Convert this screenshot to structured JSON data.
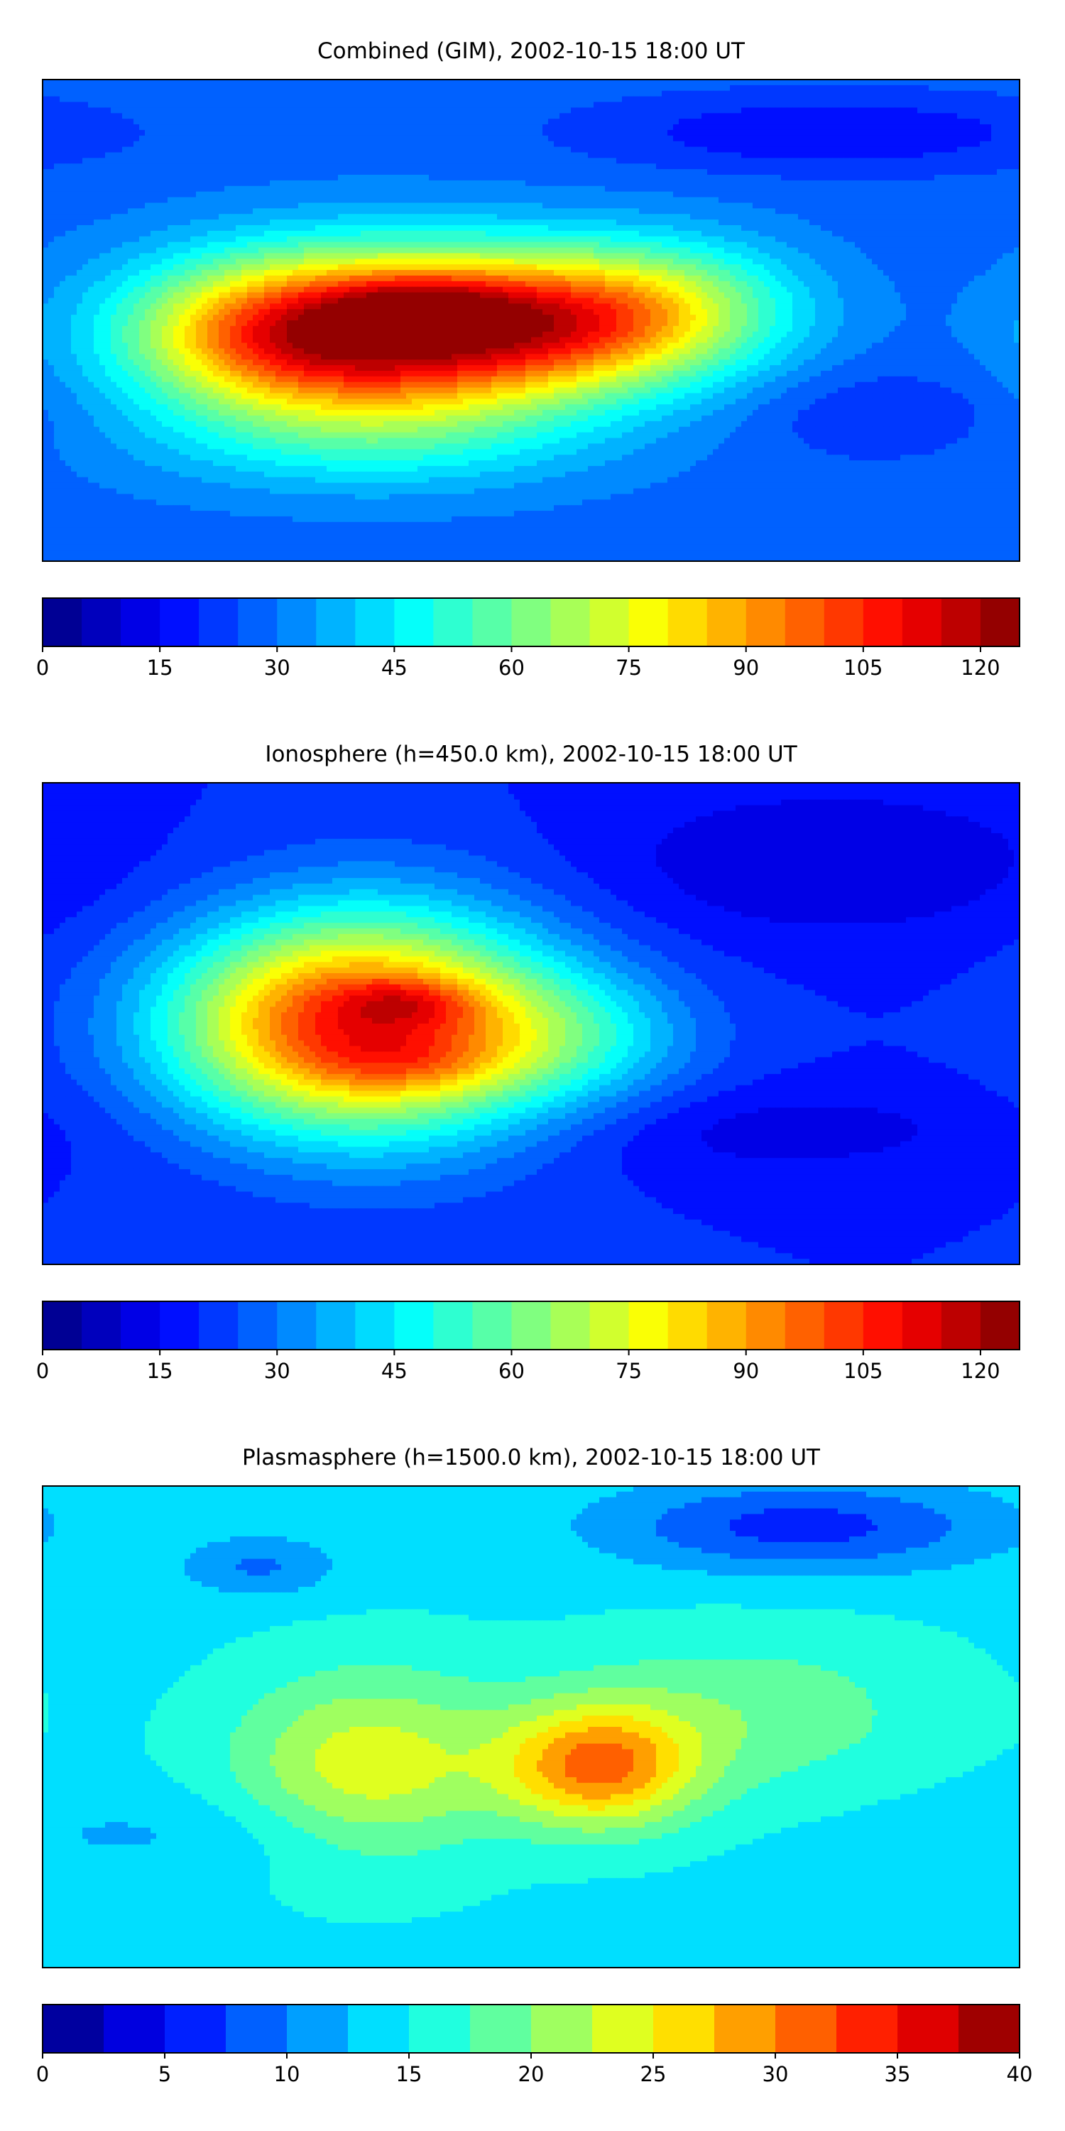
{
  "panels": [
    {
      "title": "Combined (GIM), 2002-10-15 18:00 UT",
      "colorbar": {
        "min": 0,
        "max": 125,
        "step": 5,
        "ticks": [
          "0",
          "15",
          "30",
          "45",
          "60",
          "75",
          "90",
          "105",
          "120"
        ],
        "tick_values": [
          0,
          15,
          30,
          45,
          60,
          75,
          90,
          105,
          120
        ]
      },
      "field": {
        "background_level": 0.22,
        "blobs": [
          {
            "lon": -55,
            "lat": -5,
            "sx": 55,
            "sy": 22,
            "amp": 0.68
          },
          {
            "lon": -40,
            "lat": 5,
            "sx": 22,
            "sy": 8,
            "amp": 0.14
          },
          {
            "lon": -100,
            "lat": -5,
            "sx": 35,
            "sy": 18,
            "amp": 0.18
          },
          {
            "lon": 15,
            "lat": 0,
            "sx": 40,
            "sy": 18,
            "amp": 0.32
          },
          {
            "lon": 55,
            "lat": 5,
            "sx": 35,
            "sy": 18,
            "amp": 0.18
          },
          {
            "lon": -60,
            "lat": -45,
            "sx": 60,
            "sy": 15,
            "amp": 0.12
          },
          {
            "lon": 110,
            "lat": 70,
            "sx": 60,
            "sy": 10,
            "amp": -0.1
          },
          {
            "lon": 130,
            "lat": -35,
            "sx": 35,
            "sy": 12,
            "amp": -0.06
          }
        ]
      }
    },
    {
      "title": "Ionosphere  (h=450.0 km), 2002-10-15 18:00 UT",
      "colorbar": {
        "min": 0,
        "max": 125,
        "step": 5,
        "ticks": [
          "0",
          "15",
          "30",
          "45",
          "60",
          "75",
          "90",
          "105",
          "120"
        ],
        "tick_values": [
          0,
          15,
          30,
          45,
          60,
          75,
          90,
          105,
          120
        ]
      },
      "field": {
        "background_level": 0.16,
        "blobs": [
          {
            "lon": -55,
            "lat": 0,
            "sx": 45,
            "sy": 30,
            "amp": 0.55
          },
          {
            "lon": -45,
            "lat": 8,
            "sx": 18,
            "sy": 6,
            "amp": 0.12
          },
          {
            "lon": -45,
            "lat": -15,
            "sx": 25,
            "sy": 8,
            "amp": 0.08
          },
          {
            "lon": -95,
            "lat": 0,
            "sx": 40,
            "sy": 25,
            "amp": 0.2
          },
          {
            "lon": 10,
            "lat": -5,
            "sx": 35,
            "sy": 18,
            "amp": 0.18
          },
          {
            "lon": 110,
            "lat": 60,
            "sx": 60,
            "sy": 20,
            "amp": -0.08
          },
          {
            "lon": 90,
            "lat": -40,
            "sx": 60,
            "sy": 12,
            "amp": -0.06
          }
        ]
      }
    },
    {
      "title": "Plasmasphere (h=1500.0 km), 2002-10-15 18:00 UT",
      "colorbar": {
        "min": 0,
        "max": 40,
        "step": 2.5,
        "ticks": [
          "0",
          "5",
          "10",
          "15",
          "20",
          "25",
          "30",
          "35",
          "40"
        ],
        "tick_values": [
          0,
          5,
          10,
          15,
          20,
          25,
          30,
          35,
          40
        ]
      },
      "field": {
        "background_level": 0.36,
        "blobs": [
          {
            "lon": -60,
            "lat": -15,
            "sx": 35,
            "sy": 25,
            "amp": 0.24
          },
          {
            "lon": 25,
            "lat": -15,
            "sx": 25,
            "sy": 16,
            "amp": 0.38
          },
          {
            "lon": 80,
            "lat": 5,
            "sx": 50,
            "sy": 22,
            "amp": 0.12
          },
          {
            "lon": 100,
            "lat": 75,
            "sx": 50,
            "sy": 12,
            "amp": -0.2
          },
          {
            "lon": -100,
            "lat": 60,
            "sx": 20,
            "sy": 8,
            "amp": -0.12
          },
          {
            "lon": -130,
            "lat": -40,
            "sx": 60,
            "sy": 12,
            "amp": -0.06
          }
        ]
      }
    }
  ],
  "colormap": "jet",
  "coastline_color": "#000000"
}
